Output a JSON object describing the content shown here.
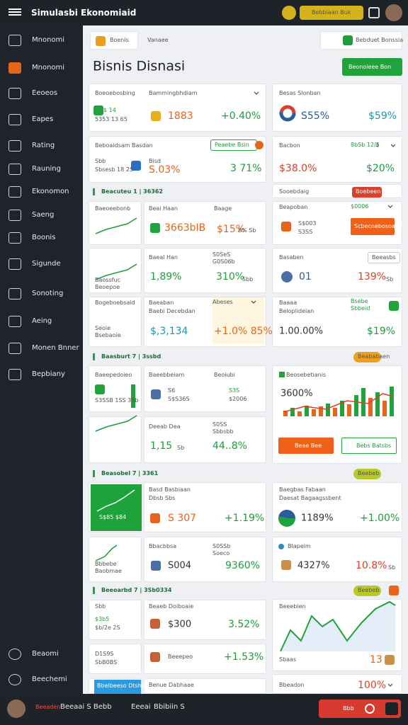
{
  "header": {
    "title": "Simulasbi Ekonomiaid",
    "action": "Bebbiaan Buk"
  },
  "sidebar": {
    "items": [
      "Mnonomi",
      "Mnonomi",
      "Eeoeos",
      "Eapes",
      "Rating",
      "Rauning",
      "Ekonomon",
      "Saeng",
      "Boonis",
      "Sigunde",
      "Sonoting",
      "Aeing",
      "Monen Bnner",
      "Bepbiany"
    ],
    "footer": [
      "Beaomi",
      "Beechemi"
    ]
  },
  "toolbar": {
    "search": "Boenis",
    "filter": "Vanaee",
    "export": "Bebduet Bonssia"
  },
  "page": {
    "title": "Bisnis Disnasi",
    "button": "Beonoieee Bon"
  },
  "sections": [
    "Beacuteu 1 | 36362",
    "Baasburt 7 | 3ssbd",
    "Beasobel 7 | 3361",
    "Beeoarbd 7 | 3Sb0334"
  ],
  "pills": [
    "Peaebe Bsin",
    "Boebeen",
    "Beeasbs",
    "Beababaen",
    "Beebeb",
    "Beebeb"
  ],
  "cards": [
    [
      "Boeoebosbing",
      "Bammingbhdiam",
      "$ 14",
      "5353 13 65",
      "1883",
      "+0.40%"
    ],
    [
      "Besas Slonban",
      "S55%",
      "$59%"
    ],
    [
      "Beboaidsam Basdan",
      "Sbb",
      "Sbsesb 18 2S",
      "Bisd",
      "S.03%",
      "3 71%"
    ],
    [
      "Bacbon",
      "8bSb 12/5",
      "4",
      "$38.0%",
      "$20%"
    ],
    [
      "Sooebdaig"
    ],
    [
      "Baeoeebonb",
      "Beai Haan",
      "Baage",
      "3663bIB",
      "$15%",
      "8% Sb"
    ],
    [
      "Beapoban",
      "$0006",
      "S$003",
      "S3SS",
      "Scbecnebosoand"
    ],
    [
      "Baossfuc",
      "Beoepoe",
      "Baeal Han",
      "S0SeS",
      "G0S06b",
      "1,89%",
      "310%",
      "Sbb"
    ],
    [
      "Basaben",
      "01",
      "139%",
      "Sb"
    ],
    [
      "Bogeboebsaid",
      "Seoie",
      "Bsebaoie",
      "Baeaban",
      "Baebi Decebdan",
      "$,3,134",
      "Abeses",
      "+1.0% 85%"
    ],
    [
      "Baaaa",
      "Beloplideian",
      "Bsebe",
      "Sbbeid",
      "1.00.00%",
      "$19%"
    ],
    [
      "Baeepedoieo",
      "S3SSB 1SS 3Sb",
      "Baeebbeiam",
      "Beoiubi",
      "S6",
      "S$S36S",
      "S3S",
      "$2006"
    ],
    [
      "Beosebetianis",
      "3600%",
      "Beae Bee",
      "Bebs Batsbs"
    ],
    [
      "Deeab Dea",
      "S0SS",
      "Sbbsbb",
      "1,15",
      "Sb",
      "44..8%"
    ],
    [
      "S$85 $84",
      "Basd Basbiaan",
      "Dbsb Sbs",
      "S 307",
      "+1.19%"
    ],
    [
      "Baegbas Fabaan",
      "Daesat Bagaagssbent",
      "1189%",
      "+1.00%"
    ],
    [
      "Bbbebe",
      "Baobmae",
      "Bbacbbsa",
      "S0SSb",
      "Soeco",
      "S004",
      "9360%"
    ],
    [
      "Blapeim",
      "4327%",
      "10.8%",
      "Sb"
    ],
    [
      "Sbb",
      "$3b5",
      "$b/2e 2S",
      "Beaeb Doiboaie",
      "$300",
      "3.52%"
    ],
    [
      "Beeebien",
      "Sbaas",
      "13"
    ],
    [
      "D1S9S",
      "SbB0BS",
      "Beeepeo",
      "+1.53%"
    ],
    [
      "Bbelbeeso Dtshed",
      "Benue Dabhaae",
      "Bbeadon",
      "100%"
    ]
  ],
  "footer": [
    "Beeaden",
    "Beeaai S Bebb",
    "Eeeai",
    "Bbibiin S",
    "Bbb"
  ]
}
